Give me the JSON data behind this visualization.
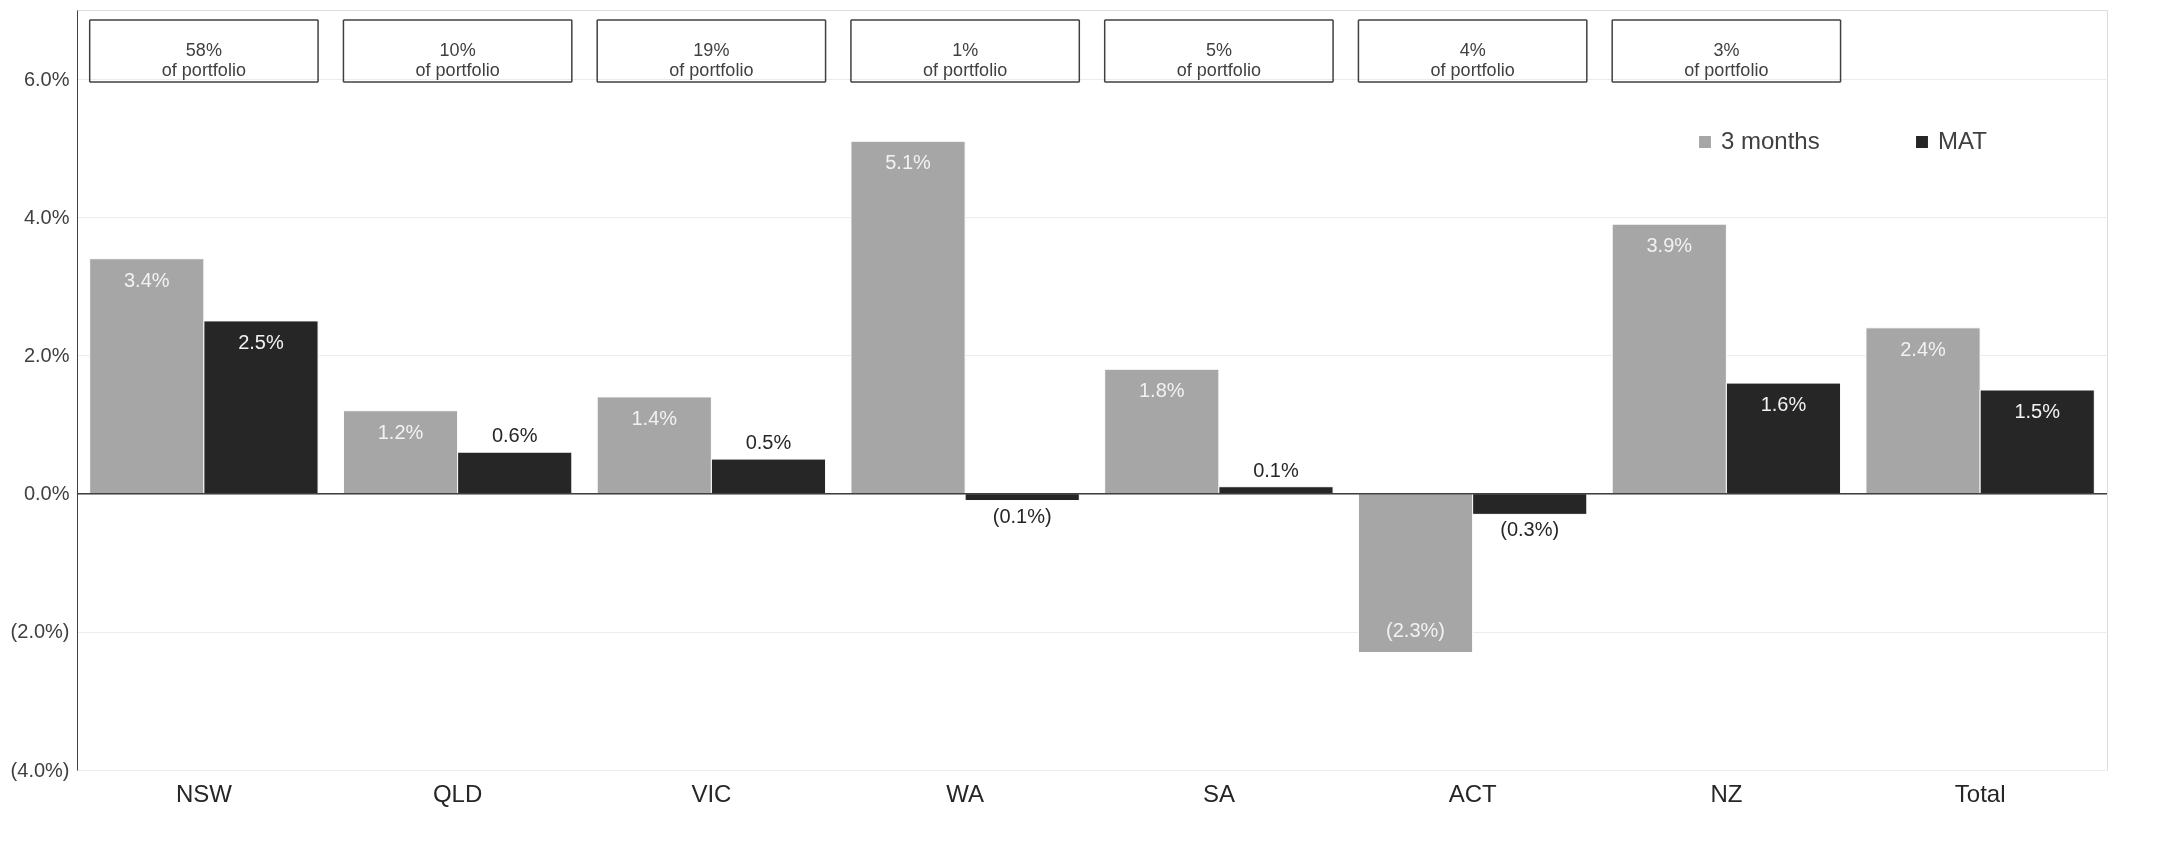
{
  "chart_data": {
    "type": "bar",
    "categories": [
      "NSW",
      "QLD",
      "VIC",
      "WA",
      "SA",
      "ACT",
      "NZ",
      "Total"
    ],
    "series": [
      {
        "name": "3 months",
        "color": "#a6a6a6",
        "values": [
          3.4,
          1.2,
          1.4,
          5.1,
          1.8,
          -2.3,
          3.9,
          2.4
        ],
        "value_labels": [
          "3.4%",
          "1.2%",
          "1.4%",
          "5.1%",
          "1.8%",
          "(2.3%)",
          "3.9%",
          "2.4%"
        ]
      },
      {
        "name": "MAT",
        "color": "#262626",
        "values": [
          2.5,
          0.6,
          0.5,
          -0.1,
          0.1,
          -0.3,
          1.6,
          1.5
        ],
        "value_labels": [
          "2.5%",
          "0.6%",
          "0.5%",
          "(0.1%)",
          "0.1%",
          "(0.3%)",
          "1.6%",
          "1.5%"
        ]
      }
    ],
    "ylim": [
      -4,
      7
    ],
    "yticks": [
      {
        "value": -4,
        "label": "(4.0%)"
      },
      {
        "value": -2,
        "label": "(2.0%)"
      },
      {
        "value": 0,
        "label": "0.0%"
      },
      {
        "value": 2,
        "label": "2.0%"
      },
      {
        "value": 4,
        "label": "4.0%"
      },
      {
        "value": 6,
        "label": "6.0%"
      }
    ],
    "grid": "y",
    "legend": "top right",
    "annotations": [
      "58%\nof portfolio",
      "10%\nof portfolio",
      "19%\nof portfolio",
      "1%\nof portfolio",
      "5%\nof portfolio",
      "4%\nof portfolio",
      "3%\nof portfolio"
    ]
  }
}
